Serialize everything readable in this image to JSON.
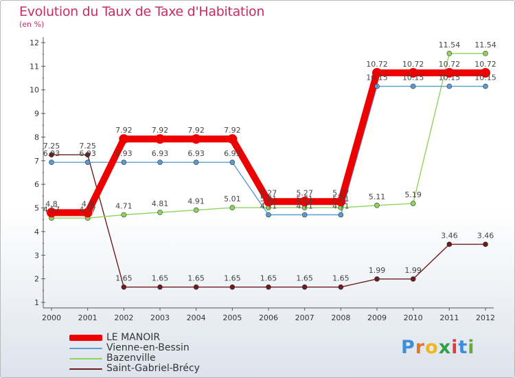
{
  "header": {
    "title": "Evolution du Taux de Taxe d'Habitation",
    "subtitle": "(en %)"
  },
  "logo": {
    "letters": [
      "P",
      "r",
      "o",
      "x",
      "i",
      "t",
      "i"
    ],
    "colors": [
      "#3d8fd8",
      "#e0772a",
      "#f2b619",
      "#2f9f45",
      "#e03c3c",
      "#3d8fd8",
      "#6aa83a"
    ]
  },
  "chart_data": {
    "type": "line",
    "title": "Evolution du Taux de Taxe d'Habitation",
    "ylabel": "(en %)",
    "x": [
      "2000",
      "2001",
      "2002",
      "2003",
      "2004",
      "2005",
      "2006",
      "2007",
      "2008",
      "2009",
      "2010",
      "2011",
      "2012"
    ],
    "yticks": [
      "1",
      "2",
      "3",
      "4",
      "5",
      "6",
      "7",
      "8",
      "9",
      "10",
      "11",
      "12"
    ],
    "ylim": [
      1,
      12
    ],
    "grid": false,
    "legend_position": "bottom-left",
    "series": [
      {
        "name": "LE MANOIR",
        "color": "#ee0000",
        "values": [
          4.8,
          4.8,
          7.92,
          7.92,
          7.92,
          7.92,
          5.27,
          5.27,
          5.27,
          10.72,
          10.72,
          10.72,
          10.72
        ],
        "labels": [
          "4.8",
          "4.8",
          "7.92",
          "7.92",
          "7.92",
          "7.92",
          "5.27",
          "5.27",
          "5.27",
          "10.72",
          "10.72",
          "10.72",
          "10.72"
        ]
      },
      {
        "name": "Vienne-en-Bessin",
        "color": "#5b9bd0",
        "values": [
          6.93,
          6.93,
          6.93,
          6.93,
          6.93,
          6.93,
          4.71,
          4.71,
          4.71,
          10.15,
          10.15,
          10.15,
          10.15
        ],
        "labels": [
          "6.93",
          "6.93",
          "6.93",
          "6.93",
          "6.93",
          "6.93",
          "4.71",
          "4.71",
          "4.71",
          "10.15",
          "10.15",
          "10.15",
          "10.15"
        ]
      },
      {
        "name": "Bazenville",
        "color": "#8fd45a",
        "values": [
          4.57,
          4.57,
          4.71,
          4.81,
          4.91,
          5.01,
          5.01,
          5.01,
          5.01,
          5.11,
          5.19,
          11.54,
          11.54
        ],
        "labels": [
          "4.57",
          "4.57",
          "4.71",
          "4.81",
          "4.91",
          "5.01",
          "5.01",
          "5.01",
          "5.01",
          "5.11",
          "5.19",
          "11.54",
          "11.54"
        ]
      },
      {
        "name": "Saint-Gabriel-Brécy",
        "color": "#6b1c1c",
        "values": [
          7.25,
          7.25,
          1.65,
          1.65,
          1.65,
          1.65,
          1.65,
          1.65,
          1.65,
          1.99,
          1.99,
          3.46,
          3.46
        ],
        "labels": [
          "7.25",
          "7.25",
          "1.65",
          "1.65",
          "1.65",
          "1.65",
          "1.65",
          "1.65",
          "1.65",
          "1.99",
          "1.99",
          "3.46",
          "3.46"
        ]
      }
    ]
  }
}
